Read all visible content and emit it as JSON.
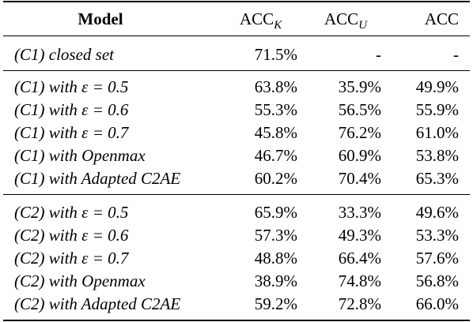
{
  "header": {
    "model": "Model",
    "acck_main": "ACC",
    "acck_sub": "K",
    "accu_main": "ACC",
    "accu_sub": "U",
    "acc": "ACC"
  },
  "groups": [
    {
      "rows": [
        {
          "model": "(C1) closed set",
          "acck": "71.5%",
          "accu": "-",
          "acc": "-"
        }
      ]
    },
    {
      "rows": [
        {
          "model": "(C1) with ε = 0.5",
          "acck": "63.8%",
          "accu": "35.9%",
          "acc": "49.9%"
        },
        {
          "model": "(C1) with ε = 0.6",
          "acck": "55.3%",
          "accu": "56.5%",
          "acc": "55.9%"
        },
        {
          "model": "(C1) with ε = 0.7",
          "acck": "45.8%",
          "accu": "76.2%",
          "acc": "61.0%"
        },
        {
          "model": "(C1) with Openmax",
          "acck": "46.7%",
          "accu": "60.9%",
          "acc": "53.8%"
        },
        {
          "model": "(C1) with Adapted C2AE",
          "acck": "60.2%",
          "accu": "70.4%",
          "acc": "65.3%"
        }
      ]
    },
    {
      "rows": [
        {
          "model": "(C2) with ε = 0.5",
          "acck": "65.9%",
          "accu": "33.3%",
          "acc": "49.6%"
        },
        {
          "model": "(C2) with ε = 0.6",
          "acck": "57.3%",
          "accu": "49.3%",
          "acc": "53.3%"
        },
        {
          "model": "(C2) with ε = 0.7",
          "acck": "48.8%",
          "accu": "66.4%",
          "acc": "57.6%"
        },
        {
          "model": "(C2) with Openmax",
          "acck": "38.9%",
          "accu": "74.8%",
          "acc": "56.8%"
        },
        {
          "model": "(C2) with Adapted C2AE",
          "acck": "59.2%",
          "accu": "72.8%",
          "acc": "66.0%"
        }
      ]
    }
  ]
}
